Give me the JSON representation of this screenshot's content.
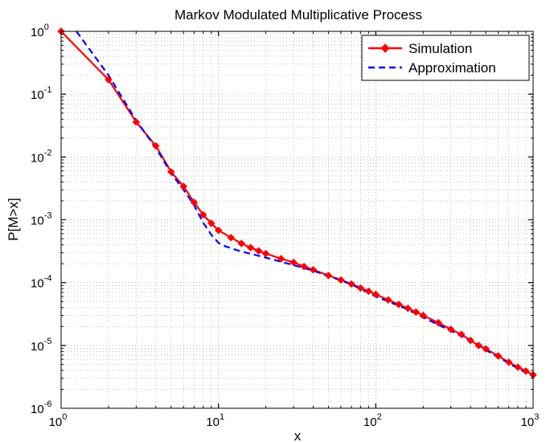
{
  "chart_data": {
    "type": "line",
    "title": "Markov Modulated Multiplicative Process",
    "xlabel": "x",
    "ylabel": "P[M>x]",
    "xscale": "log",
    "yscale": "log",
    "xlim": [
      1,
      1000
    ],
    "ylim": [
      1e-06,
      1
    ],
    "grid": true,
    "legend_position": "top-right",
    "x_ticks": [
      {
        "value": 1,
        "base": "10",
        "exp": "0"
      },
      {
        "value": 10,
        "base": "10",
        "exp": "1"
      },
      {
        "value": 100,
        "base": "10",
        "exp": "2"
      },
      {
        "value": 1000,
        "base": "10",
        "exp": "3"
      }
    ],
    "y_ticks": [
      {
        "value": 1e-06,
        "base": "10",
        "exp": "-6"
      },
      {
        "value": 1e-05,
        "base": "10",
        "exp": "-5"
      },
      {
        "value": 0.0001,
        "base": "10",
        "exp": "-4"
      },
      {
        "value": 0.001,
        "base": "10",
        "exp": "-3"
      },
      {
        "value": 0.01,
        "base": "10",
        "exp": "-2"
      },
      {
        "value": 0.1,
        "base": "10",
        "exp": "-1"
      },
      {
        "value": 1,
        "base": "10",
        "exp": "0"
      }
    ],
    "series": [
      {
        "name": "Simulation",
        "color": "#ff0000",
        "style": "solid",
        "marker": "diamond",
        "points": [
          [
            1,
            1.0
          ],
          [
            2,
            0.17
          ],
          [
            3,
            0.036
          ],
          [
            4,
            0.015
          ],
          [
            5,
            0.0058
          ],
          [
            6,
            0.0034
          ],
          [
            7,
            0.0019
          ],
          [
            8,
            0.0012
          ],
          [
            9,
            0.00088
          ],
          [
            10,
            0.00068
          ],
          [
            12,
            0.00052
          ],
          [
            14,
            0.00042
          ],
          [
            16,
            0.00036
          ],
          [
            18,
            0.00032
          ],
          [
            20,
            0.00029
          ],
          [
            25,
            0.00024
          ],
          [
            30,
            0.00021
          ],
          [
            35,
            0.00018
          ],
          [
            40,
            0.00016
          ],
          [
            50,
            0.00013
          ],
          [
            60,
            0.00011
          ],
          [
            70,
            9.5e-05
          ],
          [
            80,
            8.2e-05
          ],
          [
            90,
            7.3e-05
          ],
          [
            100,
            6.5e-05
          ],
          [
            120,
            5.3e-05
          ],
          [
            140,
            4.5e-05
          ],
          [
            160,
            3.9e-05
          ],
          [
            180,
            3.4e-05
          ],
          [
            200,
            3e-05
          ],
          [
            250,
            2.3e-05
          ],
          [
            300,
            1.8e-05
          ],
          [
            350,
            1.5e-05
          ],
          [
            400,
            1.2e-05
          ],
          [
            450,
            1e-05
          ],
          [
            500,
            8.8e-06
          ],
          [
            600,
            6.8e-06
          ],
          [
            700,
            5.4e-06
          ],
          [
            800,
            4.5e-06
          ],
          [
            900,
            3.9e-06
          ],
          [
            1000,
            3.4e-06
          ]
        ]
      },
      {
        "name": "Approximation",
        "color": "#0000ff",
        "style": "dashed",
        "marker": "none",
        "points": [
          [
            1.25,
            1.0
          ],
          [
            2,
            0.2
          ],
          [
            3,
            0.038
          ],
          [
            4,
            0.014
          ],
          [
            5,
            0.0055
          ],
          [
            6,
            0.003
          ],
          [
            7,
            0.0017
          ],
          [
            8,
            0.0009
          ],
          [
            9,
            0.00058
          ],
          [
            10,
            0.00043
          ],
          [
            11,
            0.00038
          ],
          [
            13,
            0.00033
          ],
          [
            15,
            0.0003
          ],
          [
            20,
            0.00025
          ],
          [
            30,
            0.00019
          ],
          [
            40,
            0.000155
          ],
          [
            50,
            0.000128
          ],
          [
            70,
            9.4e-05
          ],
          [
            100,
            6e-05
          ],
          [
            150,
            4e-05
          ],
          [
            200,
            2.8e-05
          ],
          [
            300,
            1.7e-05
          ],
          [
            400,
            1.2e-05
          ],
          [
            500,
            8.5e-06
          ],
          [
            600,
            6.5e-06
          ],
          [
            700,
            5.2e-06
          ],
          [
            800,
            4.3e-06
          ],
          [
            1000,
            3.2e-06
          ]
        ]
      }
    ]
  }
}
